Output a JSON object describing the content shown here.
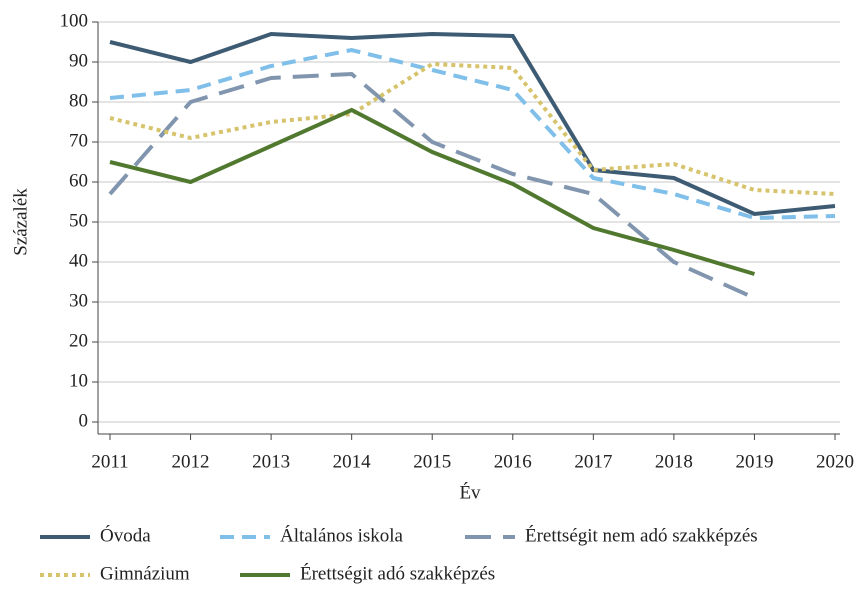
{
  "chart_data": {
    "type": "line",
    "x": [
      2011,
      2012,
      2013,
      2014,
      2015,
      2016,
      2017,
      2018,
      2019,
      2020
    ],
    "xlabel": "Év",
    "ylabel": "Százalék",
    "xlim": [
      2011,
      2020
    ],
    "xticks": [
      2011,
      2012,
      2013,
      2014,
      2015,
      2016,
      2017,
      2018,
      2019,
      2020
    ],
    "ylim": [
      0,
      100
    ],
    "yticks": [
      0,
      10,
      20,
      30,
      40,
      50,
      60,
      70,
      80,
      90,
      100
    ],
    "grid": true,
    "legend": "bottom",
    "series": [
      {
        "name": "Óvoda",
        "color": "#3e5b74",
        "dash": "solid",
        "values": [
          95,
          90,
          97,
          96,
          97,
          96.5,
          63,
          61,
          52,
          54
        ]
      },
      {
        "name": "Általános iskola",
        "color": "#7fbfe9",
        "dash": "dash",
        "values": [
          81,
          83,
          89,
          93,
          88,
          83,
          61,
          57,
          51,
          51.5
        ]
      },
      {
        "name": "Érettségit nem adó szakképzés",
        "color": "#8196ae",
        "dash": "longdash",
        "values": [
          57,
          80,
          86,
          87,
          70,
          62,
          57,
          40,
          31,
          null
        ]
      },
      {
        "name": "Gimnázium",
        "color": "#d6c36c",
        "dash": "dot",
        "values": [
          76,
          71,
          75,
          77,
          89.5,
          88.5,
          63,
          64.5,
          58,
          57
        ]
      },
      {
        "name": "Érettségit adó szakképzés",
        "color": "#50792f",
        "dash": "solid",
        "values": [
          65,
          60,
          69,
          78,
          67.5,
          59.5,
          48.5,
          43,
          37,
          null
        ]
      }
    ]
  }
}
